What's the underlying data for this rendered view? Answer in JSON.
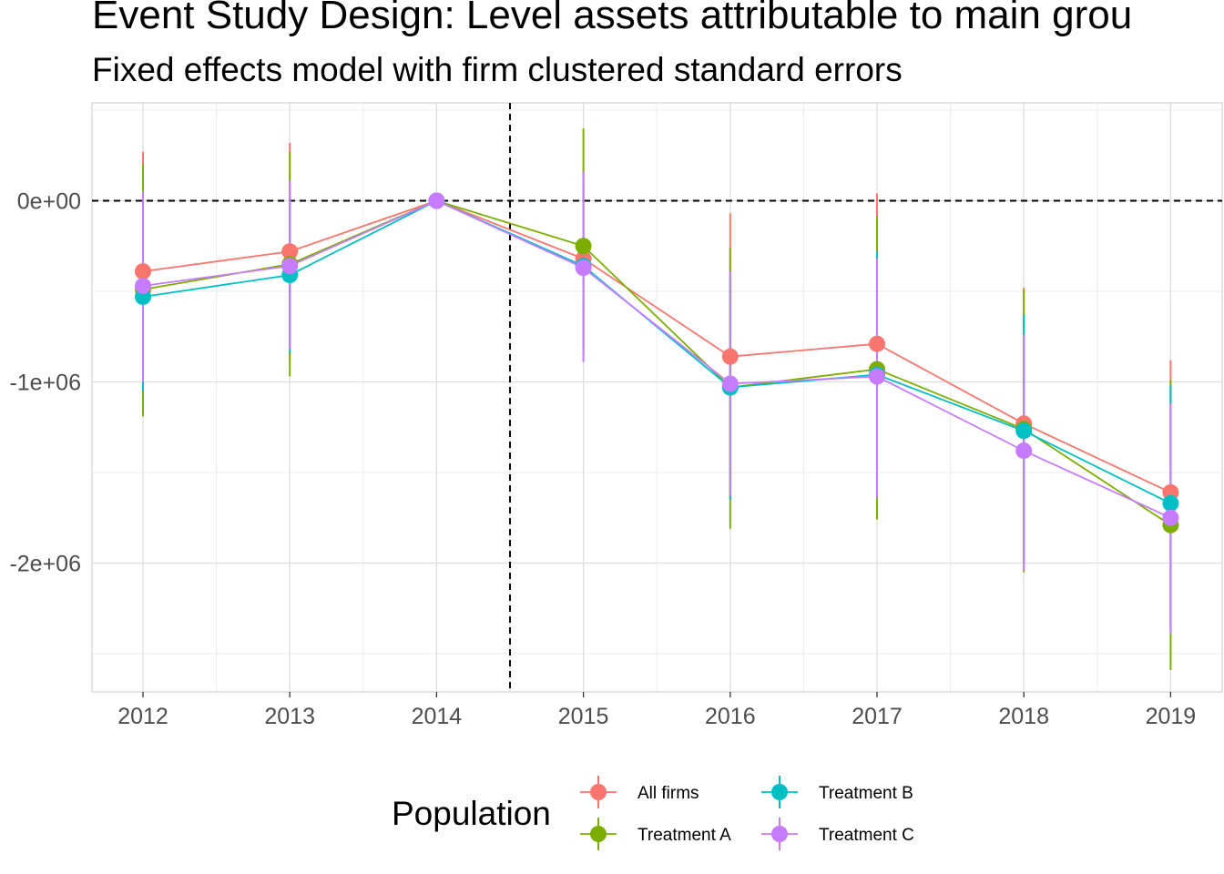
{
  "chart_data": {
    "type": "line",
    "title": "Event Study Design: Level assets attributable to main grou",
    "subtitle": "Fixed effects model with firm clustered standard errors",
    "xlabel": "",
    "ylabel": "",
    "categories": [
      "2012",
      "2013",
      "2014",
      "2015",
      "2016",
      "2017",
      "2018",
      "2019"
    ],
    "y_ticks": [
      0,
      -1000000,
      -2000000
    ],
    "y_tick_labels": [
      "0e+00",
      "-1e+06",
      "-2e+06"
    ],
    "ylim": [
      -2720000,
      540000
    ],
    "reference_lines": {
      "horizontal_y": 0,
      "vertical_between": [
        "2014",
        "2015"
      ]
    },
    "grid": true,
    "legend": {
      "title": "Population",
      "position": "bottom"
    },
    "series": [
      {
        "name": "All firms",
        "color": "#F8766D",
        "values": [
          -390000,
          -280000,
          0,
          -320000,
          -860000,
          -790000,
          -1230000,
          -1610000
        ],
        "lower": [
          -1050000,
          -880000,
          0,
          -820000,
          -1650000,
          -1620000,
          -1980000,
          -2340000
        ],
        "upper": [
          270000,
          320000,
          0,
          180000,
          -70000,
          40000,
          -480000,
          -880000
        ]
      },
      {
        "name": "Treatment A",
        "color": "#7CAE00",
        "values": [
          -490000,
          -350000,
          0,
          -250000,
          -1030000,
          -930000,
          -1260000,
          -1790000
        ],
        "lower": [
          -1190000,
          -970000,
          0,
          -880000,
          -1810000,
          -1760000,
          -2050000,
          -2590000
        ],
        "upper": [
          200000,
          270000,
          0,
          400000,
          -260000,
          -90000,
          -490000,
          -990000
        ]
      },
      {
        "name": "Treatment B",
        "color": "#00BFC4",
        "values": [
          -530000,
          -410000,
          0,
          -360000,
          -1030000,
          -960000,
          -1270000,
          -1670000
        ],
        "lower": [
          -1050000,
          -840000,
          0,
          -840000,
          -1650000,
          -1640000,
          -2000000,
          -2380000
        ],
        "upper": [
          -10000,
          20000,
          0,
          120000,
          -410000,
          -280000,
          -630000,
          -1020000
        ]
      },
      {
        "name": "Treatment C",
        "color": "#C77CFF",
        "values": [
          -470000,
          -360000,
          0,
          -370000,
          -1010000,
          -970000,
          -1380000,
          -1750000
        ],
        "lower": [
          -1000000,
          -820000,
          0,
          -890000,
          -1630000,
          -1640000,
          -2040000,
          -2390000
        ],
        "upper": [
          50000,
          110000,
          0,
          160000,
          -390000,
          -320000,
          -740000,
          -1120000
        ]
      }
    ]
  }
}
